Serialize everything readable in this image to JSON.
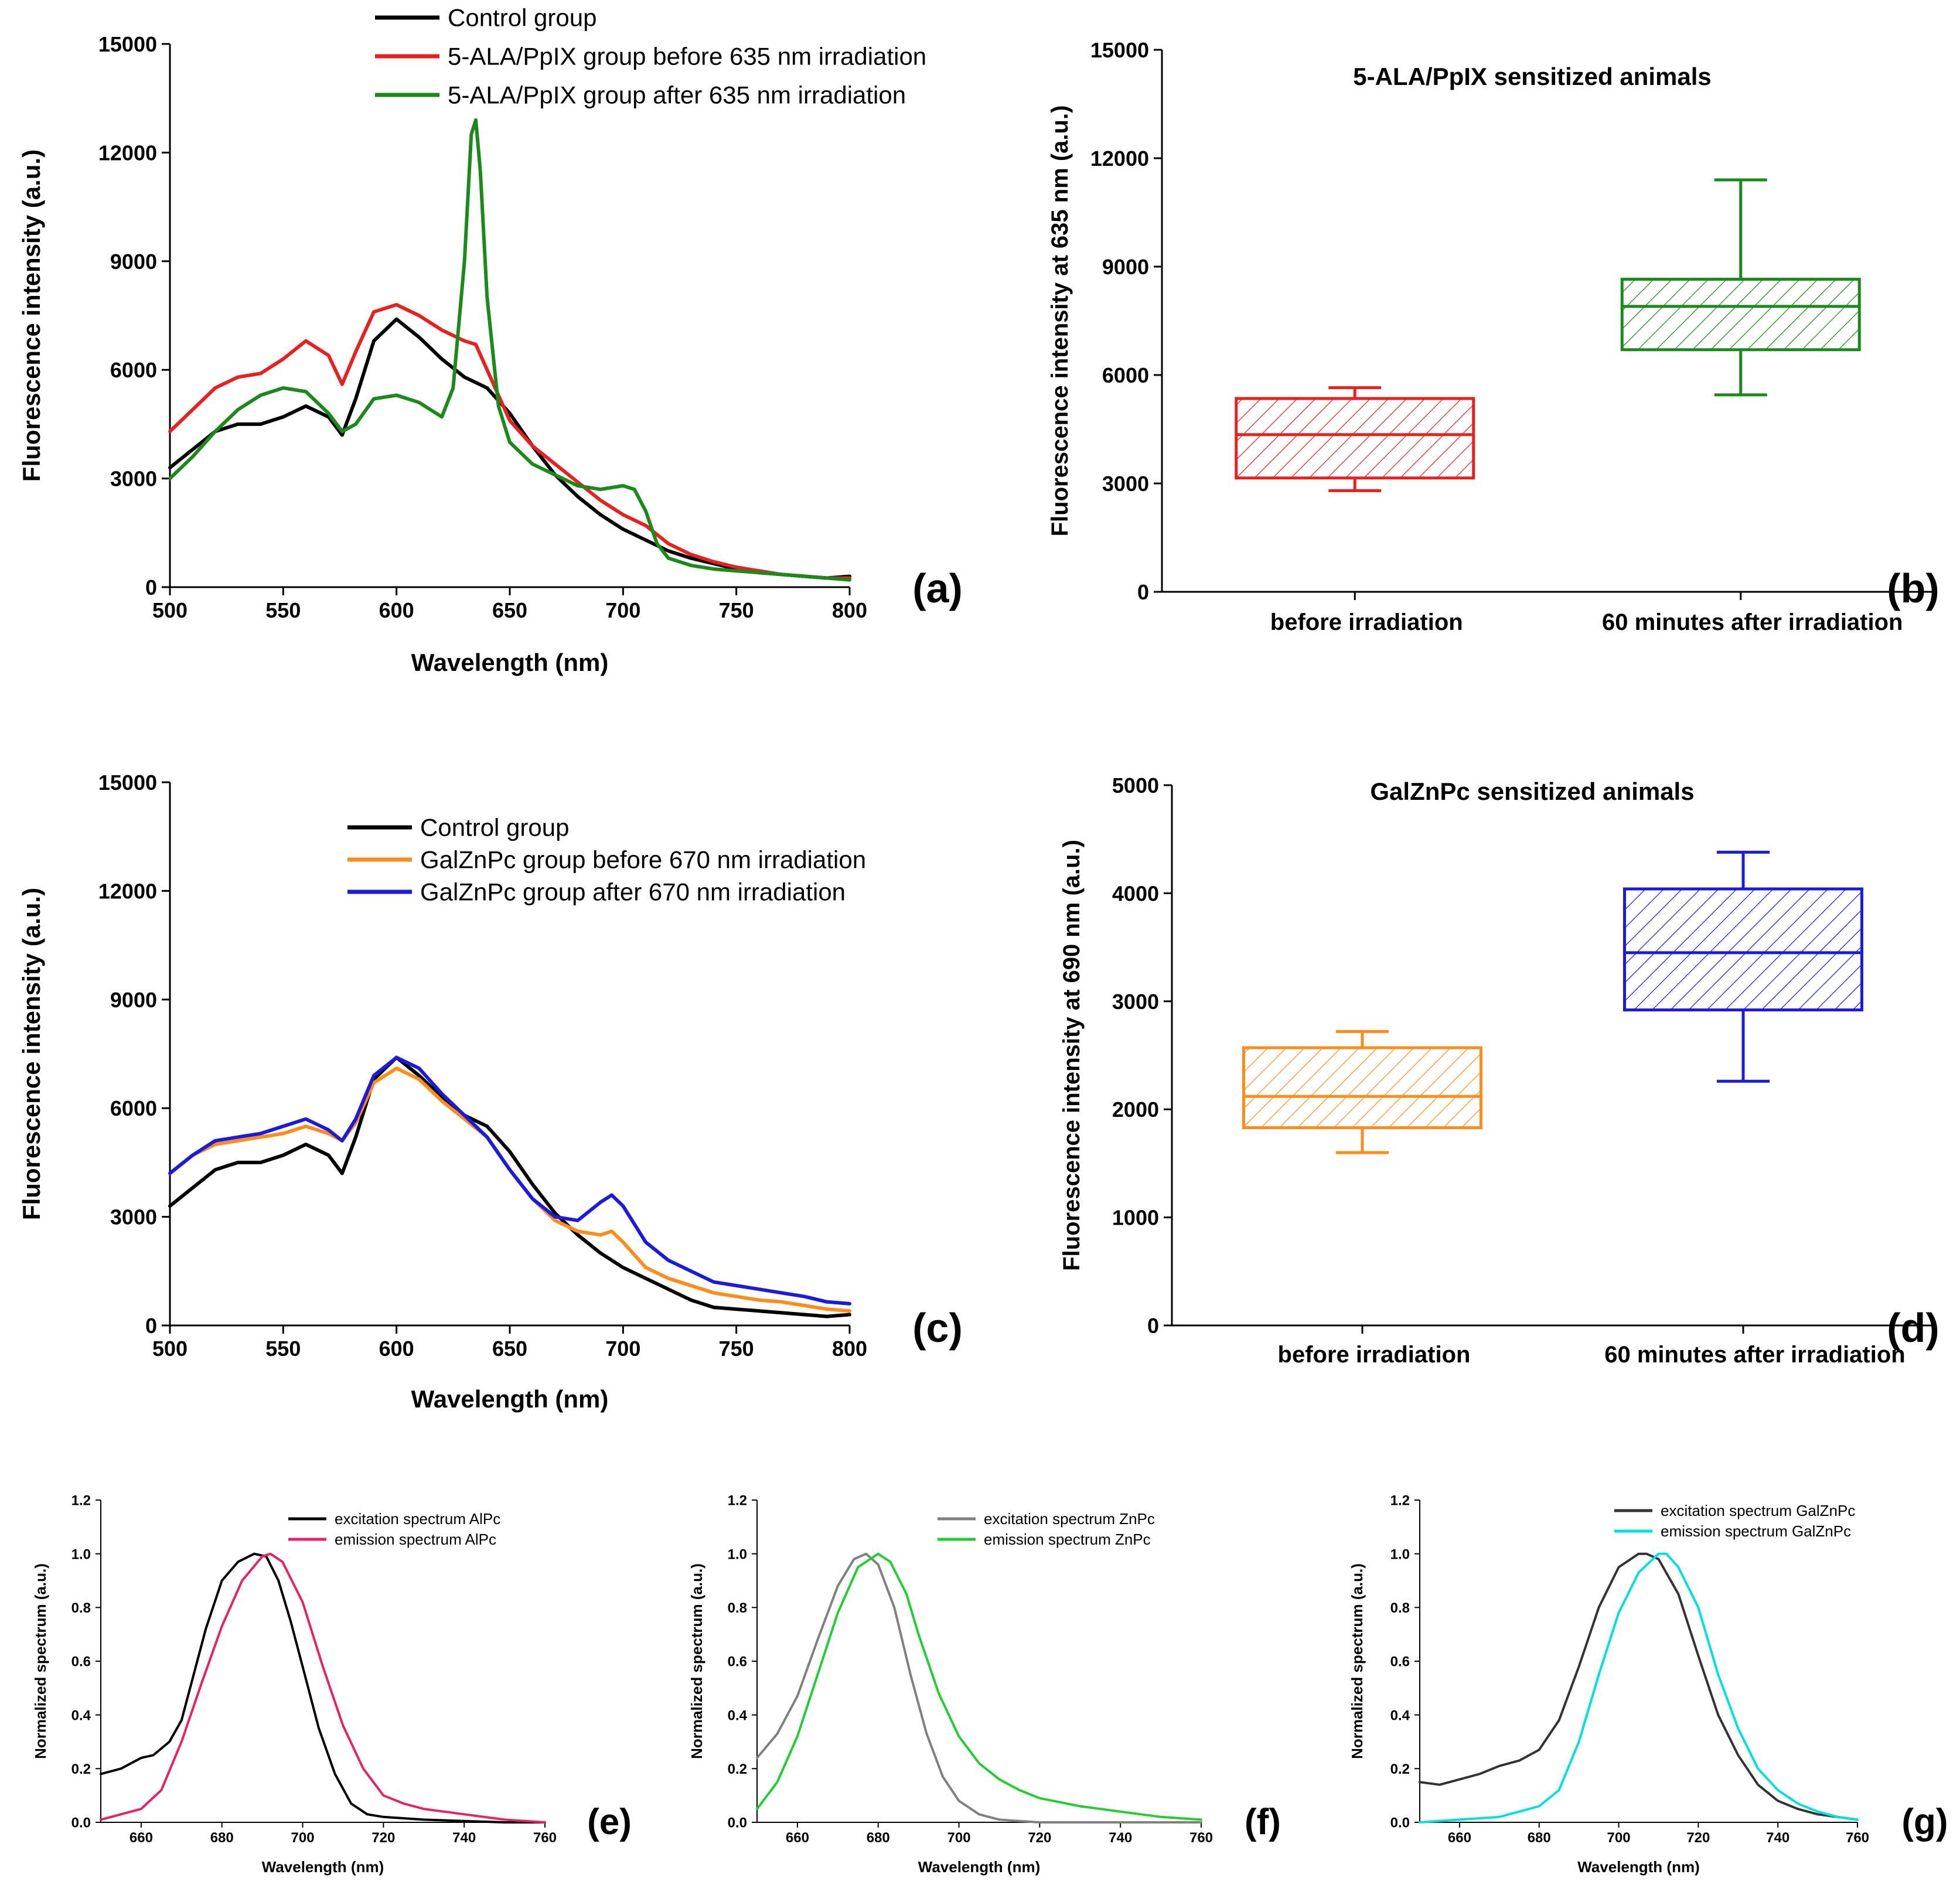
{
  "chart_data": [
    {
      "type": "line",
      "panel_label": "(a)",
      "title": "",
      "xlabel": "Wavelength (nm)",
      "ylabel": "Fluorescence intensity (a.u.)",
      "xlim": [
        500,
        800
      ],
      "ylim": [
        0,
        15000
      ],
      "xticks": [
        500,
        550,
        600,
        650,
        700,
        750,
        800
      ],
      "yticks": [
        0,
        3000,
        6000,
        9000,
        12000,
        15000
      ],
      "legend_position": "top",
      "series": [
        {
          "name": "Control group",
          "color": "#000000",
          "x": [
            500,
            510,
            520,
            530,
            540,
            550,
            560,
            570,
            576,
            582,
            590,
            600,
            610,
            620,
            630,
            640,
            650,
            660,
            670,
            680,
            690,
            700,
            710,
            720,
            730,
            740,
            750,
            760,
            770,
            780,
            790,
            800
          ],
          "y": [
            3300,
            3800,
            4300,
            4500,
            4500,
            4700,
            5000,
            4700,
            4200,
            5200,
            6800,
            7400,
            6900,
            6300,
            5800,
            5500,
            4800,
            3900,
            3100,
            2500,
            2000,
            1600,
            1300,
            1000,
            800,
            650,
            500,
            400,
            350,
            300,
            250,
            300
          ]
        },
        {
          "name": "5-ALA/PpIX group before 635 nm irradiation",
          "color": "#e8201f",
          "x": [
            500,
            510,
            520,
            530,
            540,
            550,
            560,
            570,
            576,
            582,
            590,
            600,
            610,
            620,
            630,
            635,
            640,
            650,
            660,
            670,
            680,
            690,
            700,
            710,
            720,
            730,
            740,
            750,
            760,
            770,
            780,
            790,
            800
          ],
          "y": [
            4300,
            4900,
            5500,
            5800,
            5900,
            6300,
            6800,
            6400,
            5600,
            6500,
            7600,
            7800,
            7500,
            7100,
            6800,
            6700,
            6000,
            4600,
            3900,
            3400,
            2900,
            2400,
            2000,
            1700,
            1200,
            900,
            700,
            550,
            450,
            350,
            300,
            250,
            250
          ]
        },
        {
          "name": "5-ALA/PpIX group after 635 nm irradiation",
          "color": "#1a8a1a",
          "x": [
            500,
            510,
            520,
            530,
            540,
            550,
            560,
            570,
            576,
            582,
            590,
            600,
            610,
            620,
            625,
            630,
            633,
            635,
            637,
            640,
            645,
            650,
            660,
            670,
            680,
            690,
            700,
            705,
            710,
            715,
            720,
            730,
            740,
            750,
            760,
            770,
            780,
            790,
            800
          ],
          "y": [
            3000,
            3600,
            4300,
            4900,
            5300,
            5500,
            5400,
            4800,
            4300,
            4500,
            5200,
            5300,
            5100,
            4700,
            5500,
            9000,
            12500,
            12900,
            11500,
            8000,
            5000,
            4000,
            3400,
            3100,
            2800,
            2700,
            2800,
            2700,
            2100,
            1200,
            800,
            600,
            500,
            450,
            400,
            350,
            300,
            250,
            200
          ]
        }
      ]
    },
    {
      "type": "box",
      "panel_label": "(b)",
      "title": "5-ALA/PpIX sensitized animals",
      "xlabel": "",
      "ylabel": "Fluorescence intensity at 635 nm (a.u.)",
      "ylim": [
        0,
        15000
      ],
      "yticks": [
        0,
        3000,
        6000,
        9000,
        12000,
        15000
      ],
      "categories": [
        "before irradiation",
        "60 minutes after irradiation"
      ],
      "boxes": [
        {
          "category": "before irradiation",
          "color": "#e8201f",
          "whisker_low": 2800,
          "q1": 3150,
          "median": 4350,
          "q3": 5350,
          "whisker_high": 5650
        },
        {
          "category": "60 minutes after irradiation",
          "color": "#1a8a1a",
          "whisker_low": 5450,
          "q1": 6700,
          "median": 7900,
          "q3": 8650,
          "whisker_high": 11400
        }
      ]
    },
    {
      "type": "line",
      "panel_label": "(c)",
      "title": "",
      "xlabel": "Wavelength (nm)",
      "ylabel": "Fluorescence intensity (a.u.)",
      "xlim": [
        500,
        800
      ],
      "ylim": [
        0,
        15000
      ],
      "xticks": [
        500,
        550,
        600,
        650,
        700,
        750,
        800
      ],
      "yticks": [
        0,
        3000,
        6000,
        9000,
        12000,
        15000
      ],
      "legend_position": "top",
      "series": [
        {
          "name": "Control group",
          "color": "#000000",
          "x": [
            500,
            510,
            520,
            530,
            540,
            550,
            560,
            570,
            576,
            582,
            590,
            600,
            610,
            620,
            630,
            640,
            650,
            660,
            670,
            680,
            690,
            700,
            710,
            720,
            730,
            740,
            750,
            760,
            770,
            780,
            790,
            800
          ],
          "y": [
            3300,
            3800,
            4300,
            4500,
            4500,
            4700,
            5000,
            4700,
            4200,
            5200,
            6800,
            7400,
            6900,
            6300,
            5800,
            5500,
            4800,
            3900,
            3100,
            2500,
            2000,
            1600,
            1300,
            1000,
            700,
            500,
            450,
            400,
            350,
            300,
            250,
            300
          ]
        },
        {
          "name": "GalZnPc group before 670 nm irradiation",
          "color": "#ff8c1a",
          "x": [
            500,
            510,
            520,
            530,
            540,
            550,
            560,
            570,
            576,
            582,
            590,
            600,
            610,
            620,
            630,
            640,
            650,
            660,
            670,
            680,
            690,
            695,
            700,
            710,
            720,
            730,
            740,
            750,
            760,
            770,
            780,
            790,
            800
          ],
          "y": [
            4200,
            4700,
            5000,
            5100,
            5200,
            5300,
            5500,
            5300,
            5100,
            5600,
            6700,
            7100,
            6800,
            6200,
            5700,
            5200,
            4300,
            3500,
            2900,
            2600,
            2500,
            2600,
            2300,
            1600,
            1300,
            1100,
            900,
            800,
            700,
            650,
            550,
            450,
            400
          ]
        },
        {
          "name": "GalZnPc group after 670 nm irradiation",
          "color": "#1a1ae0",
          "x": [
            500,
            510,
            520,
            530,
            540,
            550,
            560,
            570,
            576,
            582,
            590,
            600,
            610,
            620,
            630,
            640,
            650,
            660,
            670,
            680,
            690,
            695,
            700,
            710,
            720,
            730,
            740,
            750,
            760,
            770,
            780,
            790,
            800
          ],
          "y": [
            4200,
            4700,
            5100,
            5200,
            5300,
            5500,
            5700,
            5400,
            5100,
            5700,
            6900,
            7400,
            7100,
            6400,
            5800,
            5200,
            4300,
            3500,
            3000,
            2900,
            3400,
            3600,
            3300,
            2300,
            1800,
            1500,
            1200,
            1100,
            1000,
            900,
            800,
            650,
            600
          ]
        }
      ]
    },
    {
      "type": "box",
      "panel_label": "(d)",
      "title": "GalZnPc sensitized animals",
      "xlabel": "",
      "ylabel": "Fluorescence intensity at 690 nm (a.u.)",
      "ylim": [
        0,
        5000
      ],
      "yticks": [
        0,
        1000,
        2000,
        3000,
        4000,
        5000
      ],
      "categories": [
        "before irradiation",
        "60 minutes after irradiation"
      ],
      "boxes": [
        {
          "category": "before irradiation",
          "color": "#ff8c1a",
          "whisker_low": 1600,
          "q1": 1830,
          "median": 2120,
          "q3": 2570,
          "whisker_high": 2720
        },
        {
          "category": "60 minutes after irradiation",
          "color": "#1a1ae0",
          "whisker_low": 2260,
          "q1": 2920,
          "median": 3450,
          "q3": 4040,
          "whisker_high": 4380
        }
      ]
    },
    {
      "type": "line",
      "panel_label": "(e)",
      "title": "",
      "xlabel": "Wavelength (nm)",
      "ylabel": "Normalized spectrum (a.u.)",
      "xlim": [
        650,
        760
      ],
      "ylim": [
        0,
        1.2
      ],
      "xticks": [
        660,
        680,
        700,
        720,
        740,
        760
      ],
      "yticks": [
        0.0,
        0.2,
        0.4,
        0.6,
        0.8,
        1.0,
        1.2
      ],
      "legend_position": "top",
      "series": [
        {
          "name": "excitation spectrum AlPc",
          "color": "#000000",
          "x": [
            650,
            655,
            660,
            663,
            667,
            670,
            673,
            676,
            680,
            684,
            688,
            691,
            694,
            697,
            700,
            704,
            708,
            712,
            716,
            720,
            730,
            740,
            750,
            760
          ],
          "y": [
            0.18,
            0.2,
            0.24,
            0.25,
            0.3,
            0.38,
            0.55,
            0.72,
            0.9,
            0.97,
            1.0,
            0.99,
            0.9,
            0.75,
            0.58,
            0.35,
            0.18,
            0.07,
            0.03,
            0.02,
            0.01,
            0.005,
            0.0,
            0.0
          ]
        },
        {
          "name": "emission spectrum AlPc",
          "color": "#e8206a",
          "x": [
            650,
            655,
            660,
            665,
            670,
            675,
            680,
            685,
            690,
            692,
            695,
            700,
            705,
            710,
            715,
            720,
            725,
            730,
            735,
            740,
            745,
            750,
            760
          ],
          "y": [
            0.01,
            0.03,
            0.05,
            0.12,
            0.3,
            0.52,
            0.73,
            0.9,
            0.99,
            1.0,
            0.97,
            0.82,
            0.58,
            0.36,
            0.2,
            0.1,
            0.07,
            0.05,
            0.04,
            0.03,
            0.02,
            0.01,
            0.0
          ]
        }
      ]
    },
    {
      "type": "line",
      "panel_label": "(f)",
      "title": "",
      "xlabel": "Wavelength (nm)",
      "ylabel": "Normalized spectrum (a.u.)",
      "xlim": [
        650,
        760
      ],
      "ylim": [
        0,
        1.2
      ],
      "xticks": [
        660,
        680,
        700,
        720,
        740,
        760
      ],
      "yticks": [
        0.0,
        0.2,
        0.4,
        0.6,
        0.8,
        1.0,
        1.2
      ],
      "legend_position": "top",
      "series": [
        {
          "name": "excitation spectrum ZnPc",
          "color": "#808080",
          "x": [
            650,
            655,
            660,
            665,
            670,
            674,
            677,
            680,
            684,
            688,
            692,
            696,
            700,
            705,
            710,
            715,
            720,
            730,
            740,
            760
          ],
          "y": [
            0.24,
            0.33,
            0.47,
            0.68,
            0.88,
            0.98,
            1.0,
            0.96,
            0.8,
            0.55,
            0.33,
            0.17,
            0.08,
            0.03,
            0.01,
            0.005,
            0.0,
            0.0,
            0.0,
            0.0
          ]
        },
        {
          "name": "emission spectrum ZnPc",
          "color": "#22cc33",
          "x": [
            650,
            655,
            660,
            665,
            670,
            675,
            680,
            683,
            687,
            690,
            695,
            700,
            705,
            710,
            715,
            720,
            730,
            740,
            750,
            760
          ],
          "y": [
            0.05,
            0.15,
            0.32,
            0.55,
            0.78,
            0.95,
            1.0,
            0.97,
            0.85,
            0.7,
            0.48,
            0.32,
            0.22,
            0.16,
            0.12,
            0.09,
            0.06,
            0.04,
            0.02,
            0.01
          ]
        }
      ]
    },
    {
      "type": "line",
      "panel_label": "(g)",
      "title": "",
      "xlabel": "Wavelength (nm)",
      "ylabel": "Normalized spectrum (a.u.)",
      "xlim": [
        650,
        760
      ],
      "ylim": [
        0,
        1.2
      ],
      "xticks": [
        660,
        680,
        700,
        720,
        740,
        760
      ],
      "yticks": [
        0.0,
        0.2,
        0.4,
        0.6,
        0.8,
        1.0,
        1.2
      ],
      "legend_position": "top",
      "series": [
        {
          "name": "excitation spectrum GalZnPc",
          "color": "#333333",
          "x": [
            650,
            655,
            660,
            665,
            670,
            675,
            680,
            685,
            690,
            695,
            700,
            705,
            707,
            710,
            715,
            720,
            725,
            730,
            735,
            740,
            745,
            750,
            755,
            760
          ],
          "y": [
            0.15,
            0.14,
            0.16,
            0.18,
            0.21,
            0.23,
            0.27,
            0.38,
            0.58,
            0.8,
            0.95,
            1.0,
            1.0,
            0.98,
            0.85,
            0.62,
            0.4,
            0.25,
            0.14,
            0.08,
            0.05,
            0.03,
            0.02,
            0.01
          ]
        },
        {
          "name": "emission spectrum GalZnPc",
          "color": "#00e0e0",
          "x": [
            650,
            660,
            670,
            675,
            680,
            685,
            690,
            695,
            700,
            705,
            710,
            712,
            715,
            720,
            725,
            730,
            735,
            740,
            745,
            750,
            755,
            760
          ],
          "y": [
            0.0,
            0.01,
            0.02,
            0.04,
            0.06,
            0.12,
            0.3,
            0.55,
            0.78,
            0.93,
            1.0,
            1.0,
            0.95,
            0.8,
            0.55,
            0.35,
            0.2,
            0.12,
            0.07,
            0.04,
            0.02,
            0.01
          ]
        }
      ]
    }
  ]
}
